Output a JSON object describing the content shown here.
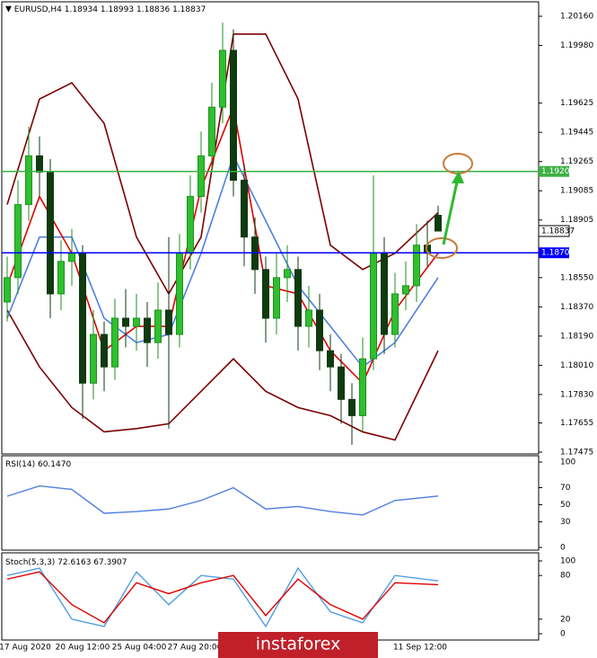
{
  "chart_data": {
    "type": "candlestick",
    "symbol": "EURUSD,H4",
    "up_color": "#1f8f1f",
    "down_color": "#103a10",
    "open": [
      1.184,
      1.1855,
      1.19,
      1.193,
      1.192,
      1.1845,
      1.1865,
      1.187,
      1.179,
      1.182,
      1.18,
      1.183,
      1.1825,
      1.183,
      1.1815,
      1.1835,
      1.182,
      1.187,
      1.1905,
      1.193,
      1.196,
      1.1995,
      1.1915,
      1.188,
      1.186,
      1.183,
      1.1855,
      1.186,
      1.1825,
      1.1835,
      1.181,
      1.18,
      1.178,
      1.177,
      1.1805,
      1.187,
      1.182,
      1.1845,
      1.185,
      1.1875,
      1.18934
    ],
    "high": [
      1.1868,
      1.1915,
      1.1948,
      1.1942,
      1.1928,
      1.1878,
      1.1885,
      1.1875,
      1.1835,
      1.1828,
      1.1842,
      1.1848,
      1.1845,
      1.184,
      1.1852,
      1.188,
      1.1882,
      1.1918,
      1.1945,
      1.1975,
      1.2012,
      1.2008,
      1.1925,
      1.1892,
      1.1868,
      1.187,
      1.1875,
      1.1868,
      1.185,
      1.1845,
      1.182,
      1.1808,
      1.179,
      1.1818,
      1.1918,
      1.188,
      1.1858,
      1.1865,
      1.1888,
      1.189,
      1.18993
    ],
    "low": [
      1.1828,
      1.1845,
      1.189,
      1.1905,
      1.183,
      1.1835,
      1.185,
      1.1768,
      1.178,
      1.1785,
      1.1792,
      1.1812,
      1.181,
      1.18,
      1.1805,
      1.1762,
      1.1812,
      1.186,
      1.1895,
      1.192,
      1.195,
      1.1905,
      1.1862,
      1.1845,
      1.1815,
      1.182,
      1.184,
      1.181,
      1.1812,
      1.1798,
      1.1785,
      1.1765,
      1.1752,
      1.176,
      1.1798,
      1.1808,
      1.1812,
      1.1835,
      1.184,
      1.1862,
      1.18836
    ],
    "close": [
      1.1855,
      1.19,
      1.193,
      1.192,
      1.1845,
      1.1865,
      1.187,
      1.179,
      1.182,
      1.18,
      1.183,
      1.1825,
      1.183,
      1.1815,
      1.1835,
      1.182,
      1.187,
      1.1905,
      1.193,
      1.196,
      1.1995,
      1.1915,
      1.188,
      1.186,
      1.183,
      1.1855,
      1.186,
      1.1825,
      1.1835,
      1.181,
      1.18,
      1.178,
      1.177,
      1.1805,
      1.187,
      1.182,
      1.1845,
      1.185,
      1.1875,
      1.187,
      1.18837
    ],
    "ylim": [
      1.20249,
      1.17464
    ],
    "yticks": [
      {
        "value": 1.2016,
        "label": "1.20160"
      },
      {
        "value": 1.1998,
        "label": "1.19980"
      },
      {
        "value": 1.19625,
        "label": "1.19625"
      },
      {
        "value": 1.19445,
        "label": "1.19445"
      },
      {
        "value": 1.19265,
        "label": "1.19265"
      },
      {
        "value": 1.19085,
        "label": "1.19085"
      },
      {
        "value": 1.18905,
        "label": "1.18905"
      },
      {
        "value": 1.1855,
        "label": "1.18550"
      },
      {
        "value": 1.1837,
        "label": "1.18370"
      },
      {
        "value": 1.1819,
        "label": "1.18190"
      },
      {
        "value": 1.1801,
        "label": "1.18010"
      },
      {
        "value": 1.1783,
        "label": "1.17830"
      },
      {
        "value": 1.17655,
        "label": "1.17655"
      },
      {
        "value": 1.17475,
        "label": "1.17475"
      }
    ],
    "hlines": [
      {
        "value": 1.19204,
        "color": "#3cb043"
      },
      {
        "value": 1.18703,
        "color": "#0000ff"
      }
    ],
    "overlay_x": [
      0,
      3,
      6,
      9,
      12,
      15,
      18,
      21,
      24,
      27,
      30,
      33,
      36,
      40
    ],
    "overlays": [
      {
        "color": "#7a0000",
        "values": [
          1.19,
          1.1965,
          1.1975,
          1.195,
          1.188,
          1.1845,
          1.188,
          1.2005,
          1.2005,
          1.1965,
          1.1875,
          1.186,
          1.187,
          1.1895
        ]
      },
      {
        "color": "#7a0000",
        "values": [
          1.1835,
          1.18,
          1.1775,
          1.176,
          1.1762,
          1.1765,
          1.1785,
          1.1805,
          1.1785,
          1.1775,
          1.177,
          1.176,
          1.1755,
          1.181
        ]
      },
      {
        "color": "#4f7fe0",
        "values": [
          1.183,
          1.188,
          1.188,
          1.183,
          1.1815,
          1.182,
          1.187,
          1.193,
          1.189,
          1.185,
          1.1825,
          1.18,
          1.1815,
          1.1855
        ]
      },
      {
        "color": "#e00000",
        "values": [
          1.185,
          1.1905,
          1.187,
          1.181,
          1.1825,
          1.1825,
          1.191,
          1.196,
          1.185,
          1.1845,
          1.181,
          1.179,
          1.1835,
          1.187
        ]
      }
    ],
    "x_labels": [
      "17 Aug 2020",
      "20 Aug 12:00",
      "25 Aug 04:00",
      "27 Aug 20:00",
      "11 Sep 12:00"
    ],
    "rsi": {
      "title": "RSI(14)",
      "last": 60.147,
      "last_label": "60.1470",
      "color": "#4f7fe0",
      "ylim": [
        100,
        0
      ],
      "yticks": [
        100,
        70,
        50,
        30,
        0
      ],
      "values": [
        60,
        72,
        68,
        40,
        42,
        45,
        55,
        70,
        45,
        48,
        42,
        38,
        55,
        60.147
      ]
    },
    "stoch": {
      "title": "Stoch(5,3,3)",
      "ylim": [
        100,
        0
      ],
      "yticks": [
        100,
        80,
        20,
        0
      ],
      "main": {
        "color": "#4f9fe0",
        "values": [
          80,
          90,
          20,
          10,
          85,
          40,
          80,
          75,
          10,
          90,
          30,
          15,
          80,
          72.6163
        ]
      },
      "signal": {
        "color": "#e00000",
        "values": [
          75,
          85,
          40,
          15,
          70,
          55,
          70,
          80,
          25,
          75,
          40,
          20,
          70,
          67.3907
        ]
      }
    },
    "watermark": "instaforex"
  }
}
